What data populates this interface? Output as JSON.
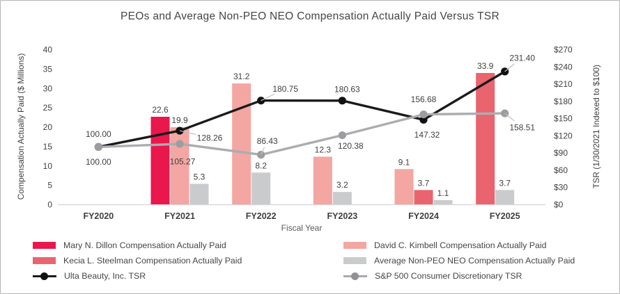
{
  "title": "PEOs and Average Non-PEO NEO Compensation Actually Paid Versus TSR",
  "chart_data": {
    "type": "combo-bar-line",
    "categories": [
      "FY2020",
      "FY2021",
      "FY2022",
      "FY2023",
      "FY2024",
      "FY2025"
    ],
    "xlabel": "Fiscal Year",
    "grid": false,
    "left_axis": {
      "label": "Compensation Actually Paid ($ Millions)",
      "min": 0,
      "max": 40,
      "step": 5,
      "prefix": ""
    },
    "right_axis": {
      "label": "TSR (1/30/2021 Indexed to $100)",
      "min": 0,
      "max": 270,
      "step": 30,
      "prefix": "$"
    },
    "bar_series": [
      {
        "name": "Mary N. Dillon Compensation Actually Paid",
        "color": "#EA174D",
        "values": [
          null,
          22.6,
          null,
          null,
          null,
          null
        ]
      },
      {
        "name": "David C. Kimbell Compensation Actually Paid",
        "color": "#F3A6A2",
        "values": [
          null,
          19.9,
          31.2,
          12.3,
          9.1,
          null
        ]
      },
      {
        "name": "Kecia L. Steelman Compensation Actually Paid",
        "color": "#E9646E",
        "values": [
          null,
          null,
          null,
          null,
          3.7,
          33.9
        ]
      },
      {
        "name": "Average Non-PEO NEO Compensation Actually Paid",
        "color": "#C9CBCD",
        "values": [
          null,
          5.3,
          8.2,
          3.2,
          1.1,
          3.7
        ]
      }
    ],
    "line_series": [
      {
        "name": "Ulta Beauty, Inc. TSR",
        "color": "#1A1A1A",
        "marker_color": "#111111",
        "values": [
          100.0,
          128.26,
          180.75,
          180.63,
          147.32,
          231.4
        ],
        "labels": [
          "100.00",
          "128.26",
          "180.75",
          "180.63",
          "147.32",
          "231.40"
        ],
        "label_offsets": [
          [
            0,
            -19,
            false
          ],
          [
            43,
            10,
            true
          ],
          [
            35,
            -17,
            true
          ],
          [
            7,
            -17,
            false
          ],
          [
            5,
            21,
            false
          ],
          [
            25,
            -20,
            true
          ]
        ]
      },
      {
        "name": "S&P 500 Consumer Discretionary TSR",
        "color": "#ABADB0",
        "marker_color": "#9B9DA0",
        "values": [
          100.0,
          105.27,
          86.43,
          120.38,
          156.68,
          158.51
        ],
        "labels": [
          "100.00",
          "105.27",
          "86.43",
          "120.38",
          "156.68",
          "158.51"
        ],
        "label_offsets": [
          [
            0,
            21,
            false
          ],
          [
            4,
            25,
            false
          ],
          [
            9,
            -20,
            true
          ],
          [
            12,
            15,
            false
          ],
          [
            0,
            -22,
            false
          ],
          [
            25,
            20,
            true
          ]
        ]
      }
    ]
  },
  "legend": {
    "columns": [
      [
        {
          "label": "Mary N. Dillon Compensation Actually Paid",
          "swatch": "bar",
          "color": "#EA174D"
        },
        {
          "label": "Kecia L. Steelman Compensation Actually Paid",
          "swatch": "bar",
          "color": "#E9646E"
        },
        {
          "label": "Ulta Beauty, Inc. TSR",
          "swatch": "line",
          "color": "#1A1A1A",
          "marker_color": "#111111"
        }
      ],
      [
        {
          "label": "David C. Kimbell Compensation Actually Paid",
          "swatch": "bar",
          "color": "#F3A6A2"
        },
        {
          "label": "Average Non-PEO NEO Compensation Actually Paid",
          "swatch": "bar",
          "color": "#C9CBCD"
        },
        {
          "label": "S&P 500 Consumer Discretionary TSR",
          "swatch": "line",
          "color": "#A7A9AC",
          "marker_color": "#8F9194"
        }
      ]
    ]
  }
}
